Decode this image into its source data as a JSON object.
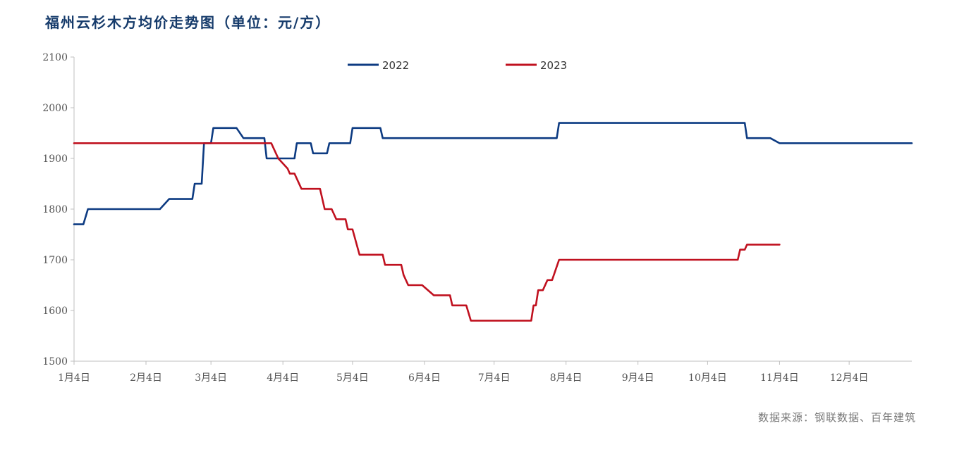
{
  "chart_data": {
    "type": "line",
    "title": "福州云杉木方均价走势图（单位：元/方）",
    "xlabel": "",
    "ylabel": "",
    "ylim": [
      1500,
      2100
    ],
    "yticks": [
      1500,
      1600,
      1700,
      1800,
      1900,
      2000,
      2100
    ],
    "xlim": [
      "1月4日",
      "12月31日"
    ],
    "x_tick_labels": [
      "1月4日",
      "2月4日",
      "3月4日",
      "4月4日",
      "5月4日",
      "6月4日",
      "7月4日",
      "8月4日",
      "9月4日",
      "10月4日",
      "11月4日",
      "12月4日"
    ],
    "grid": false,
    "legend_position": "top-center",
    "series": [
      {
        "name": "2022",
        "color": "#0d3b82",
        "points": [
          [
            "1月4日",
            1770
          ],
          [
            "1月8日",
            1770
          ],
          [
            "1月10日",
            1800
          ],
          [
            "2月1日",
            1800
          ],
          [
            "2月10日",
            1800
          ],
          [
            "2月14日",
            1820
          ],
          [
            "2月24日",
            1820
          ],
          [
            "2月25日",
            1850
          ],
          [
            "2月28日",
            1850
          ],
          [
            "3月1日",
            1930
          ],
          [
            "3月4日",
            1930
          ],
          [
            "3月5日",
            1960
          ],
          [
            "3月15日",
            1960
          ],
          [
            "3月18日",
            1940
          ],
          [
            "3月27日",
            1940
          ],
          [
            "3月28日",
            1900
          ],
          [
            "4月1日",
            1900
          ],
          [
            "4月9日",
            1900
          ],
          [
            "4月10日",
            1930
          ],
          [
            "4月16日",
            1930
          ],
          [
            "4月17日",
            1910
          ],
          [
            "4月23日",
            1910
          ],
          [
            "4月24日",
            1930
          ],
          [
            "5月3日",
            1930
          ],
          [
            "5月4日",
            1960
          ],
          [
            "5月16日",
            1960
          ],
          [
            "5月17日",
            1940
          ],
          [
            "6月1日",
            1940
          ],
          [
            "7月1日",
            1940
          ],
          [
            "7月31日",
            1940
          ],
          [
            "8月1日",
            1970
          ],
          [
            "9月1日",
            1970
          ],
          [
            "10月1日",
            1970
          ],
          [
            "10月20日",
            1970
          ],
          [
            "10月21日",
            1940
          ],
          [
            "10月31日",
            1940
          ],
          [
            "11月4日",
            1930
          ],
          [
            "12月1日",
            1930
          ],
          [
            "12月31日",
            1930
          ]
        ]
      },
      {
        "name": "2023",
        "color": "#c0111f",
        "points": [
          [
            "1月4日",
            1930
          ],
          [
            "2月1日",
            1930
          ],
          [
            "3月1日",
            1930
          ],
          [
            "3月30日",
            1930
          ],
          [
            "4月2日",
            1900
          ],
          [
            "4月6日",
            1880
          ],
          [
            "4月7日",
            1870
          ],
          [
            "4月9日",
            1870
          ],
          [
            "4月12日",
            1840
          ],
          [
            "4月20日",
            1840
          ],
          [
            "4月22日",
            1800
          ],
          [
            "4月25日",
            1800
          ],
          [
            "4月27日",
            1780
          ],
          [
            "5月1日",
            1780
          ],
          [
            "5月2日",
            1760
          ],
          [
            "5月4日",
            1760
          ],
          [
            "5月7日",
            1710
          ],
          [
            "5月17日",
            1710
          ],
          [
            "5月18日",
            1690
          ],
          [
            "5月25日",
            1690
          ],
          [
            "5月26日",
            1670
          ],
          [
            "5月28日",
            1650
          ],
          [
            "6月3日",
            1650
          ],
          [
            "6月8日",
            1630
          ],
          [
            "6月15日",
            1630
          ],
          [
            "6月16日",
            1610
          ],
          [
            "6月22日",
            1610
          ],
          [
            "6月24日",
            1580
          ],
          [
            "7月1日",
            1580
          ],
          [
            "7月20日",
            1580
          ],
          [
            "7月21日",
            1610
          ],
          [
            "7月22日",
            1610
          ],
          [
            "7月23日",
            1640
          ],
          [
            "7月25日",
            1640
          ],
          [
            "7月27日",
            1660
          ],
          [
            "7月29日",
            1660
          ],
          [
            "8月1日",
            1700
          ],
          [
            "9月1日",
            1700
          ],
          [
            "10月1日",
            1700
          ],
          [
            "10月17日",
            1700
          ],
          [
            "10月18日",
            1720
          ],
          [
            "10月20日",
            1720
          ],
          [
            "10月21日",
            1730
          ],
          [
            "11月4日",
            1730
          ]
        ]
      }
    ]
  },
  "footer": {
    "source": "数据来源：钢联数据、百年建筑"
  }
}
